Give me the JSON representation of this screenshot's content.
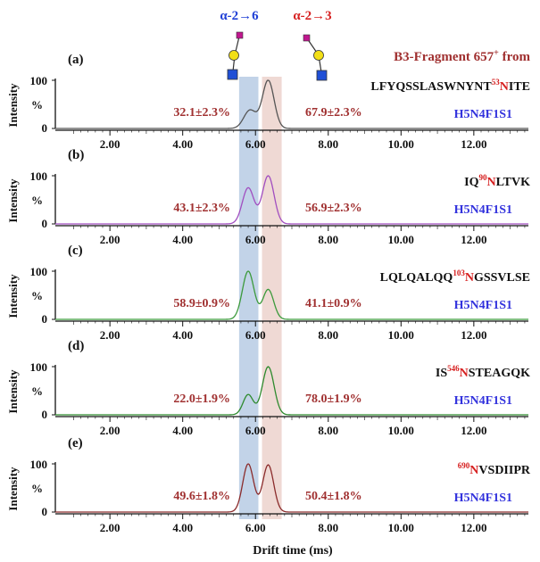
{
  "figure": {
    "header_title": "B3-Fragment 657",
    "header_title_sup": "+",
    "header_title_tail": " from",
    "glycan_left_label": "α-2→6",
    "glycan_right_label": "α-2→3",
    "x_label": "Drift time (ms)",
    "y_label": "Intensity",
    "y_unit_label": "%",
    "colors": {
      "left_label": "#1f3fd6",
      "right_label": "#d62020",
      "ratio_text": "#a03030",
      "glycoform_text": "#3333dd",
      "title_text": "#a03030",
      "band_alpha26": "#b7cbe4",
      "band_alpha23": "#ecd2cc",
      "sialic": "#c0178f",
      "galactose": "#f2df17",
      "glcnac": "#1f4fd6"
    }
  },
  "chart_data": [
    {
      "type": "line",
      "panel_label": "(a)",
      "peptide_pre": "LFYQSSLASWNYNT",
      "peptide_site": "53",
      "peptide_N": "N",
      "peptide_post": "ITE",
      "glycoform": "H5N4F1S1",
      "ratio_alpha26": "32.1±2.3%",
      "ratio_alpha23": "67.9±2.3%",
      "color": "#555555",
      "peaks": [
        {
          "x": 5.85,
          "y": 38,
          "w": 0.17
        },
        {
          "x": 6.35,
          "y": 100,
          "w": 0.16
        }
      ],
      "x_ticks": [
        "2.00",
        "4.00",
        "6.00",
        "8.00",
        "10.00",
        "12.00"
      ],
      "y_ticks": [
        "100",
        "0"
      ],
      "xlim": [
        0.5,
        13.5
      ],
      "ylim": [
        0,
        100
      ]
    },
    {
      "type": "line",
      "panel_label": "(b)",
      "peptide_pre": "IQ",
      "peptide_site": "90",
      "peptide_N": "N",
      "peptide_post": "LTVK",
      "glycoform": "H5N4F1S1",
      "ratio_alpha26": "43.1±2.3%",
      "ratio_alpha23": "56.9±2.3%",
      "color": "#a14ec0",
      "peaks": [
        {
          "x": 5.8,
          "y": 75,
          "w": 0.16
        },
        {
          "x": 6.35,
          "y": 100,
          "w": 0.16
        }
      ],
      "x_ticks": [
        "2.00",
        "4.00",
        "6.00",
        "8.00",
        "10.00",
        "12.00"
      ],
      "y_ticks": [
        "100",
        "%",
        "0"
      ],
      "xlim": [
        0.5,
        13.5
      ],
      "ylim": [
        0,
        100
      ]
    },
    {
      "type": "line",
      "panel_label": "(c)",
      "peptide_pre": "LQLQALQQ",
      "peptide_site": "103",
      "peptide_N": "N",
      "peptide_post": "GSSVLSE",
      "glycoform": "H5N4F1S1",
      "ratio_alpha26": "58.9±0.9%",
      "ratio_alpha23": "41.1±0.9%",
      "color": "#3c9a3c",
      "peaks": [
        {
          "x": 5.8,
          "y": 100,
          "w": 0.16
        },
        {
          "x": 6.35,
          "y": 62,
          "w": 0.15
        }
      ],
      "x_ticks": [
        "2.00",
        "4.00",
        "6.00",
        "8.00",
        "10.00",
        "12.00"
      ],
      "y_ticks": [
        "100",
        "%",
        "0"
      ],
      "xlim": [
        0.5,
        13.5
      ],
      "ylim": [
        0,
        100
      ]
    },
    {
      "type": "line",
      "panel_label": "(d)",
      "peptide_pre": "IS",
      "peptide_site": "546",
      "peptide_N": "N",
      "peptide_post": "STEAGQK",
      "glycoform": "H5N4F1S1",
      "ratio_alpha26": "22.0±1.9%",
      "ratio_alpha23": "78.0±1.9%",
      "color": "#2e8a2e",
      "peaks": [
        {
          "x": 5.8,
          "y": 42,
          "w": 0.14
        },
        {
          "x": 6.35,
          "y": 100,
          "w": 0.16
        }
      ],
      "x_ticks": [
        "2.00",
        "4.00",
        "6.00",
        "8.00",
        "10.00",
        "12.00"
      ],
      "y_ticks": [
        "100",
        "%",
        "0"
      ],
      "xlim": [
        0.5,
        13.5
      ],
      "ylim": [
        0,
        100
      ]
    },
    {
      "type": "line",
      "panel_label": "(e)",
      "peptide_pre": "",
      "peptide_site": "690",
      "peptide_N": "N",
      "peptide_post": "VSDIIPR",
      "glycoform": "H5N4F1S1",
      "ratio_alpha26": "49.6±1.8%",
      "ratio_alpha23": "50.4±1.8%",
      "color": "#8b2c2c",
      "peaks": [
        {
          "x": 5.8,
          "y": 100,
          "w": 0.15
        },
        {
          "x": 6.35,
          "y": 98,
          "w": 0.15
        }
      ],
      "x_ticks": [
        "2.00",
        "4.00",
        "6.00",
        "8.00",
        "10.00",
        "12.00"
      ],
      "y_ticks": [
        "100",
        "%",
        "0"
      ],
      "xlim": [
        0.5,
        13.5
      ],
      "ylim": [
        0,
        100
      ]
    }
  ]
}
